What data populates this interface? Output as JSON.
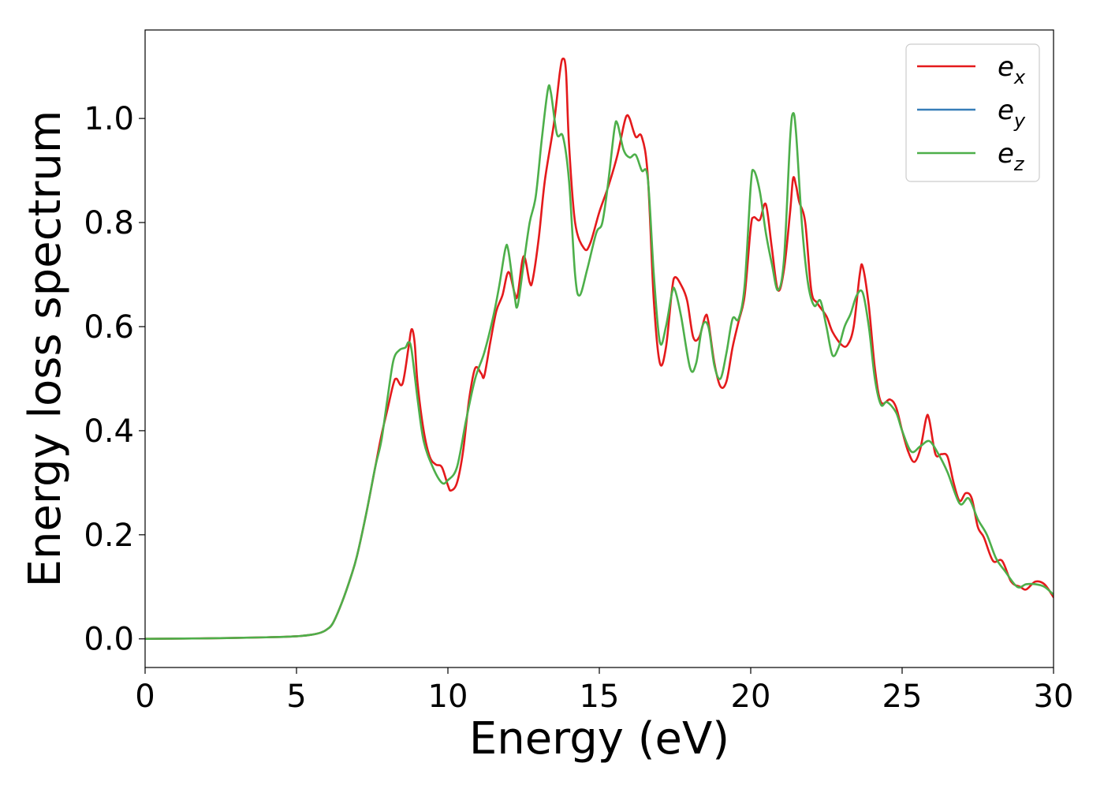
{
  "chart_data": {
    "type": "line",
    "xlabel": "Energy (eV)",
    "ylabel": "Energy loss spectrum",
    "xlim": [
      0,
      30
    ],
    "ylim": [
      -0.055,
      1.17
    ],
    "x_ticks": [
      0,
      5,
      10,
      15,
      20,
      25,
      30
    ],
    "y_ticks": [
      0.0,
      0.2,
      0.4,
      0.6,
      0.8,
      1.0
    ],
    "x_tick_labels": [
      "0",
      "5",
      "10",
      "15",
      "20",
      "25",
      "30"
    ],
    "y_tick_labels": [
      "0.0",
      "0.2",
      "0.4",
      "0.6",
      "0.8",
      "1.0"
    ],
    "grid": false,
    "legend_position": "top-right",
    "series": [
      {
        "name": "e",
        "subscript": "x",
        "color": "#e41a1c",
        "points": [
          [
            0.0,
            0.0
          ],
          [
            2.0,
            0.001
          ],
          [
            4.0,
            0.003
          ],
          [
            5.0,
            0.005
          ],
          [
            5.5,
            0.008
          ],
          [
            5.8,
            0.012
          ],
          [
            6.0,
            0.018
          ],
          [
            6.2,
            0.03
          ],
          [
            6.5,
            0.07
          ],
          [
            6.8,
            0.12
          ],
          [
            7.0,
            0.16
          ],
          [
            7.3,
            0.24
          ],
          [
            7.6,
            0.33
          ],
          [
            7.8,
            0.39
          ],
          [
            8.0,
            0.44
          ],
          [
            8.2,
            0.49
          ],
          [
            8.3,
            0.5
          ],
          [
            8.5,
            0.49
          ],
          [
            8.7,
            0.56
          ],
          [
            8.8,
            0.595
          ],
          [
            8.9,
            0.57
          ],
          [
            9.0,
            0.49
          ],
          [
            9.2,
            0.4
          ],
          [
            9.4,
            0.35
          ],
          [
            9.6,
            0.335
          ],
          [
            9.8,
            0.33
          ],
          [
            10.0,
            0.295
          ],
          [
            10.1,
            0.285
          ],
          [
            10.3,
            0.3
          ],
          [
            10.5,
            0.36
          ],
          [
            10.7,
            0.46
          ],
          [
            10.9,
            0.52
          ],
          [
            11.1,
            0.51
          ],
          [
            11.2,
            0.505
          ],
          [
            11.4,
            0.57
          ],
          [
            11.6,
            0.63
          ],
          [
            11.8,
            0.66
          ],
          [
            12.0,
            0.705
          ],
          [
            12.2,
            0.665
          ],
          [
            12.3,
            0.66
          ],
          [
            12.5,
            0.735
          ],
          [
            12.7,
            0.685
          ],
          [
            12.8,
            0.69
          ],
          [
            13.0,
            0.77
          ],
          [
            13.2,
            0.88
          ],
          [
            13.5,
            0.99
          ],
          [
            13.7,
            1.09
          ],
          [
            13.8,
            1.115
          ],
          [
            13.9,
            1.09
          ],
          [
            14.0,
            0.95
          ],
          [
            14.2,
            0.8
          ],
          [
            14.5,
            0.75
          ],
          [
            14.7,
            0.76
          ],
          [
            15.0,
            0.82
          ],
          [
            15.3,
            0.87
          ],
          [
            15.6,
            0.93
          ],
          [
            15.8,
            0.985
          ],
          [
            15.9,
            1.005
          ],
          [
            16.0,
            1.0
          ],
          [
            16.2,
            0.965
          ],
          [
            16.4,
            0.965
          ],
          [
            16.6,
            0.89
          ],
          [
            16.8,
            0.65
          ],
          [
            17.0,
            0.53
          ],
          [
            17.2,
            0.56
          ],
          [
            17.4,
            0.67
          ],
          [
            17.5,
            0.695
          ],
          [
            17.7,
            0.68
          ],
          [
            17.9,
            0.65
          ],
          [
            18.1,
            0.58
          ],
          [
            18.3,
            0.58
          ],
          [
            18.5,
            0.62
          ],
          [
            18.6,
            0.61
          ],
          [
            18.8,
            0.53
          ],
          [
            19.0,
            0.485
          ],
          [
            19.2,
            0.495
          ],
          [
            19.4,
            0.56
          ],
          [
            19.6,
            0.61
          ],
          [
            19.8,
            0.66
          ],
          [
            20.0,
            0.79
          ],
          [
            20.1,
            0.81
          ],
          [
            20.3,
            0.805
          ],
          [
            20.5,
            0.835
          ],
          [
            20.7,
            0.75
          ],
          [
            20.9,
            0.67
          ],
          [
            21.1,
            0.71
          ],
          [
            21.3,
            0.82
          ],
          [
            21.4,
            0.885
          ],
          [
            21.5,
            0.87
          ],
          [
            21.6,
            0.84
          ],
          [
            21.8,
            0.8
          ],
          [
            22.0,
            0.67
          ],
          [
            22.2,
            0.645
          ],
          [
            22.5,
            0.62
          ],
          [
            22.7,
            0.59
          ],
          [
            23.0,
            0.565
          ],
          [
            23.2,
            0.565
          ],
          [
            23.4,
            0.6
          ],
          [
            23.6,
            0.7
          ],
          [
            23.7,
            0.715
          ],
          [
            23.9,
            0.64
          ],
          [
            24.1,
            0.52
          ],
          [
            24.3,
            0.455
          ],
          [
            24.6,
            0.46
          ],
          [
            24.8,
            0.445
          ],
          [
            25.0,
            0.4
          ],
          [
            25.2,
            0.36
          ],
          [
            25.4,
            0.34
          ],
          [
            25.6,
            0.365
          ],
          [
            25.8,
            0.425
          ],
          [
            25.9,
            0.42
          ],
          [
            26.1,
            0.355
          ],
          [
            26.3,
            0.355
          ],
          [
            26.5,
            0.35
          ],
          [
            26.7,
            0.3
          ],
          [
            26.9,
            0.265
          ],
          [
            27.1,
            0.28
          ],
          [
            27.3,
            0.27
          ],
          [
            27.5,
            0.215
          ],
          [
            27.7,
            0.195
          ],
          [
            28.0,
            0.15
          ],
          [
            28.3,
            0.15
          ],
          [
            28.6,
            0.11
          ],
          [
            28.9,
            0.1
          ],
          [
            29.1,
            0.095
          ],
          [
            29.4,
            0.11
          ],
          [
            29.7,
            0.105
          ],
          [
            30.0,
            0.08
          ]
        ]
      },
      {
        "name": "e",
        "subscript": "y",
        "color": "#377eb8",
        "points": []
      },
      {
        "name": "e",
        "subscript": "z",
        "color": "#4daf4a",
        "points": [
          [
            0.0,
            0.0
          ],
          [
            2.0,
            0.001
          ],
          [
            4.0,
            0.003
          ],
          [
            5.0,
            0.005
          ],
          [
            5.5,
            0.008
          ],
          [
            5.8,
            0.012
          ],
          [
            6.0,
            0.018
          ],
          [
            6.2,
            0.03
          ],
          [
            6.5,
            0.07
          ],
          [
            6.8,
            0.12
          ],
          [
            7.0,
            0.16
          ],
          [
            7.3,
            0.24
          ],
          [
            7.6,
            0.33
          ],
          [
            7.8,
            0.38
          ],
          [
            8.0,
            0.46
          ],
          [
            8.2,
            0.535
          ],
          [
            8.4,
            0.555
          ],
          [
            8.6,
            0.56
          ],
          [
            8.7,
            0.57
          ],
          [
            8.8,
            0.555
          ],
          [
            9.0,
            0.46
          ],
          [
            9.2,
            0.38
          ],
          [
            9.5,
            0.33
          ],
          [
            9.8,
            0.3
          ],
          [
            10.0,
            0.305
          ],
          [
            10.3,
            0.33
          ],
          [
            10.6,
            0.42
          ],
          [
            10.9,
            0.5
          ],
          [
            11.2,
            0.55
          ],
          [
            11.5,
            0.62
          ],
          [
            11.7,
            0.68
          ],
          [
            11.9,
            0.75
          ],
          [
            12.0,
            0.745
          ],
          [
            12.2,
            0.66
          ],
          [
            12.3,
            0.64
          ],
          [
            12.5,
            0.72
          ],
          [
            12.7,
            0.8
          ],
          [
            12.9,
            0.85
          ],
          [
            13.1,
            0.96
          ],
          [
            13.3,
            1.055
          ],
          [
            13.4,
            1.05
          ],
          [
            13.6,
            0.97
          ],
          [
            13.8,
            0.965
          ],
          [
            14.0,
            0.88
          ],
          [
            14.2,
            0.7
          ],
          [
            14.35,
            0.66
          ],
          [
            14.6,
            0.71
          ],
          [
            14.9,
            0.78
          ],
          [
            15.1,
            0.8
          ],
          [
            15.3,
            0.88
          ],
          [
            15.5,
            0.98
          ],
          [
            15.6,
            0.99
          ],
          [
            15.8,
            0.94
          ],
          [
            16.0,
            0.925
          ],
          [
            16.2,
            0.93
          ],
          [
            16.4,
            0.9
          ],
          [
            16.6,
            0.885
          ],
          [
            16.8,
            0.7
          ],
          [
            17.0,
            0.57
          ],
          [
            17.2,
            0.6
          ],
          [
            17.4,
            0.665
          ],
          [
            17.5,
            0.67
          ],
          [
            17.7,
            0.62
          ],
          [
            18.0,
            0.52
          ],
          [
            18.2,
            0.53
          ],
          [
            18.4,
            0.6
          ],
          [
            18.6,
            0.6
          ],
          [
            18.8,
            0.525
          ],
          [
            19.0,
            0.5
          ],
          [
            19.2,
            0.55
          ],
          [
            19.4,
            0.615
          ],
          [
            19.6,
            0.615
          ],
          [
            19.8,
            0.68
          ],
          [
            20.0,
            0.87
          ],
          [
            20.1,
            0.9
          ],
          [
            20.3,
            0.86
          ],
          [
            20.5,
            0.78
          ],
          [
            20.7,
            0.72
          ],
          [
            20.9,
            0.67
          ],
          [
            21.1,
            0.73
          ],
          [
            21.3,
            0.96
          ],
          [
            21.4,
            1.01
          ],
          [
            21.5,
            0.97
          ],
          [
            21.7,
            0.79
          ],
          [
            21.9,
            0.68
          ],
          [
            22.1,
            0.64
          ],
          [
            22.3,
            0.65
          ],
          [
            22.5,
            0.6
          ],
          [
            22.7,
            0.545
          ],
          [
            22.9,
            0.56
          ],
          [
            23.1,
            0.6
          ],
          [
            23.3,
            0.625
          ],
          [
            23.5,
            0.66
          ],
          [
            23.7,
            0.665
          ],
          [
            23.9,
            0.6
          ],
          [
            24.1,
            0.5
          ],
          [
            24.3,
            0.45
          ],
          [
            24.5,
            0.455
          ],
          [
            24.8,
            0.435
          ],
          [
            25.0,
            0.4
          ],
          [
            25.3,
            0.36
          ],
          [
            25.6,
            0.37
          ],
          [
            25.9,
            0.38
          ],
          [
            26.2,
            0.355
          ],
          [
            26.5,
            0.32
          ],
          [
            26.9,
            0.26
          ],
          [
            27.2,
            0.27
          ],
          [
            27.5,
            0.23
          ],
          [
            27.8,
            0.2
          ],
          [
            28.1,
            0.155
          ],
          [
            28.4,
            0.13
          ],
          [
            28.8,
            0.1
          ],
          [
            29.1,
            0.105
          ],
          [
            29.4,
            0.105
          ],
          [
            29.7,
            0.1
          ],
          [
            30.0,
            0.085
          ]
        ]
      }
    ]
  }
}
